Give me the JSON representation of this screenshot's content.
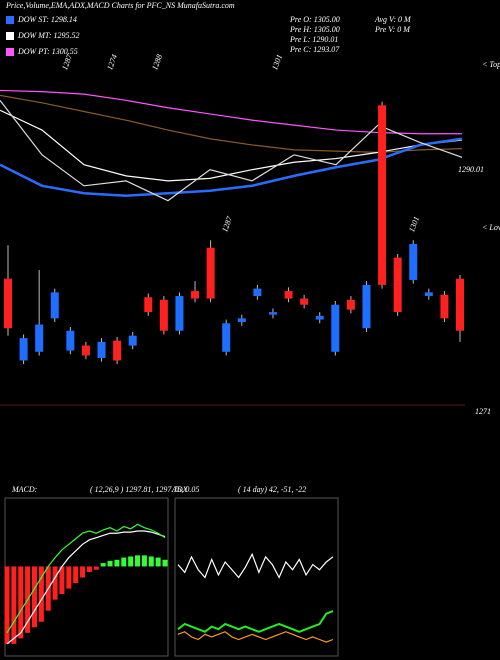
{
  "chart_data": [
    {
      "type": "line",
      "title": "Price,Volume,EMA,ADX,MACD Charts for PFC_NS  MunafaSutra.com",
      "info": [
        "Pre  O: 1305.00",
        "Pre  H: 1305.00",
        "Pre  L: 1290.01",
        "Pre  C: 1293.07"
      ],
      "info2": [
        "Avg V: 0  M",
        "Pre  V: 0  M"
      ],
      "annotations": [
        "1287",
        "1274",
        "1288",
        "1301"
      ],
      "right_labels": [
        "< Tops",
        "1290.01"
      ],
      "ylim": [
        1270.6,
        1303.7
      ],
      "series": [
        {
          "name": "DOW PT: 1300.55",
          "color": "#ff55ff",
          "values": [
            1296.4,
            1296.3,
            1296.1,
            1295.6,
            1295.0,
            1294.5,
            1294.0,
            1293.6,
            1293.2,
            1293.0,
            1292.9,
            1292.9
          ]
        },
        {
          "color": "#8a5a2a",
          "values": [
            1296.0,
            1295.4,
            1294.7,
            1294.0,
            1293.2,
            1292.5,
            1292.0,
            1291.6,
            1291.5,
            1291.4,
            1291.6,
            1291.7
          ]
        },
        {
          "name": "DOW MT: 1295.52",
          "color": "#ffffff",
          "values": [
            1294.8,
            1293.2,
            1290.4,
            1289.5,
            1289.1,
            1289.3,
            1290.0,
            1290.6,
            1290.9,
            1291.4,
            1292.0,
            1292.4
          ]
        },
        {
          "name": "DOW ST: 1298.14",
          "color": "#2a6cff",
          "values": [
            1290.4,
            1288.7,
            1288.1,
            1287.9,
            1288.1,
            1288.3,
            1288.7,
            1289.5,
            1290.2,
            1290.8,
            1292.0,
            1292.5
          ]
        },
        {
          "color": "#dddddd",
          "values": [
            1295.6,
            1291.2,
            1288.7,
            1289.1,
            1287.5,
            1290.0,
            1289.1,
            1291.2,
            1290.4,
            1293.6,
            1292.2,
            1291.0
          ]
        }
      ]
    },
    {
      "type": "candlestick",
      "ylim": [
        1270.6,
        1303.7
      ],
      "up_color": "#1e6fff",
      "down_color": "#ff2020",
      "annotations": [
        "1287",
        "1301"
      ],
      "right_labels": [
        "< Lows",
        "1271"
      ],
      "candles": [
        {
          "o": 1281.2,
          "h": 1283.9,
          "l": 1276.6,
          "c": 1277.2
        },
        {
          "o": 1274.6,
          "h": 1276.7,
          "l": 1274.3,
          "c": 1276.4
        },
        {
          "o": 1275.3,
          "h": 1281.9,
          "l": 1275.0,
          "c": 1277.5
        },
        {
          "o": 1278.0,
          "h": 1280.4,
          "l": 1277.7,
          "c": 1280.1
        },
        {
          "o": 1275.4,
          "h": 1277.3,
          "l": 1275.1,
          "c": 1277.0
        },
        {
          "o": 1275.8,
          "h": 1276.1,
          "l": 1274.7,
          "c": 1275.0
        },
        {
          "o": 1274.8,
          "h": 1276.4,
          "l": 1274.5,
          "c": 1276.1
        },
        {
          "o": 1276.2,
          "h": 1276.5,
          "l": 1274.3,
          "c": 1274.6
        },
        {
          "o": 1275.8,
          "h": 1276.9,
          "l": 1275.5,
          "c": 1276.6
        },
        {
          "o": 1279.7,
          "h": 1280.0,
          "l": 1278.2,
          "c": 1278.5
        },
        {
          "o": 1279.5,
          "h": 1279.8,
          "l": 1276.7,
          "c": 1277.0
        },
        {
          "o": 1277.0,
          "h": 1280.1,
          "l": 1276.7,
          "c": 1279.8
        },
        {
          "o": 1280.2,
          "h": 1281.0,
          "l": 1279.3,
          "c": 1279.6
        },
        {
          "o": 1283.7,
          "h": 1284.3,
          "l": 1279.3,
          "c": 1279.6
        },
        {
          "o": 1275.3,
          "h": 1277.9,
          "l": 1275.0,
          "c": 1277.6
        },
        {
          "o": 1277.7,
          "h": 1278.3,
          "l": 1277.4,
          "c": 1278.0
        },
        {
          "o": 1279.8,
          "h": 1280.7,
          "l": 1279.5,
          "c": 1280.4
        },
        {
          "o": 1278.3,
          "h": 1278.8,
          "l": 1278.0,
          "c": 1278.5
        },
        {
          "o": 1280.2,
          "h": 1280.5,
          "l": 1279.3,
          "c": 1279.6
        },
        {
          "o": 1279.6,
          "h": 1279.9,
          "l": 1278.8,
          "c": 1279.1
        },
        {
          "o": 1277.9,
          "h": 1278.5,
          "l": 1277.6,
          "c": 1278.2
        },
        {
          "o": 1275.3,
          "h": 1279.4,
          "l": 1275.0,
          "c": 1279.1
        },
        {
          "o": 1279.5,
          "h": 1279.8,
          "l": 1278.4,
          "c": 1278.7
        },
        {
          "o": 1277.2,
          "h": 1281.0,
          "l": 1276.9,
          "c": 1280.7
        },
        {
          "o": 1295.2,
          "h": 1295.5,
          "l": 1280.4,
          "c": 1280.7
        },
        {
          "o": 1282.9,
          "h": 1283.2,
          "l": 1278.2,
          "c": 1278.5
        },
        {
          "o": 1281.1,
          "h": 1284.3,
          "l": 1280.8,
          "c": 1284.0
        },
        {
          "o": 1279.8,
          "h": 1280.4,
          "l": 1279.5,
          "c": 1280.1
        },
        {
          "o": 1279.9,
          "h": 1280.2,
          "l": 1277.7,
          "c": 1278.0
        },
        {
          "o": 1281.2,
          "h": 1281.5,
          "l": 1276.1,
          "c": 1277.0
        }
      ]
    },
    {
      "type": "macd",
      "label": "MACD:",
      "params": "( 12,26,9 ) 1297.81, 1297.76, 0.05",
      "ylim": [
        -8,
        6
      ],
      "neg_color": "#ff2020",
      "pos_color": "#33ff33",
      "histogram": [
        -7,
        -7,
        -6.5,
        -6,
        -5.5,
        -5,
        -4,
        -3,
        -2.5,
        -2,
        -1.5,
        -1,
        -0.5,
        -0.3,
        0.3,
        0.5,
        0.6,
        0.8,
        0.9,
        1.0,
        1.0,
        0.9,
        0.8,
        0.6
      ],
      "series": [
        {
          "color": "#ffffff",
          "values": [
            -7,
            -6.5,
            -6,
            -5,
            -4,
            -3,
            -2,
            -1,
            0,
            0.8,
            1.4,
            2,
            2.4,
            2.6,
            2.8,
            3.0,
            3.0,
            3.1,
            3.1,
            3.2,
            3.2,
            3.1,
            2.9,
            2.7
          ]
        },
        {
          "color": "#33ff33",
          "values": [
            -6,
            -5,
            -4,
            -3,
            -2,
            -1,
            0,
            0.8,
            1.5,
            2,
            2.5,
            3,
            3.2,
            3.0,
            3.3,
            3.5,
            3.2,
            3.6,
            3.4,
            3.8,
            3.5,
            3.3,
            3.0,
            2.6
          ]
        }
      ]
    },
    {
      "type": "adx",
      "label": "ADX",
      "params": "( 14  day) 42, -51, -22",
      "ylim": [
        0,
        60
      ],
      "series": [
        {
          "color": "#ffffff",
          "values": [
            35,
            32,
            38,
            33,
            30,
            37,
            31,
            36,
            33,
            30,
            34,
            39,
            32,
            38,
            35,
            30,
            36,
            33,
            37,
            31,
            35,
            33,
            36,
            38
          ]
        },
        {
          "color": "#22ee22",
          "values": [
            10,
            12,
            11,
            10,
            9,
            11,
            10,
            12,
            11,
            10,
            11,
            10,
            9,
            10,
            11,
            12,
            11,
            10,
            9,
            10,
            11,
            12,
            16,
            17
          ]
        },
        {
          "color": "#ff9922",
          "values": [
            8,
            9,
            7,
            6,
            8,
            7,
            8,
            9,
            7,
            6,
            7,
            8,
            7,
            6,
            7,
            8,
            9,
            8,
            7,
            6,
            7,
            6,
            5,
            6
          ]
        }
      ]
    }
  ]
}
